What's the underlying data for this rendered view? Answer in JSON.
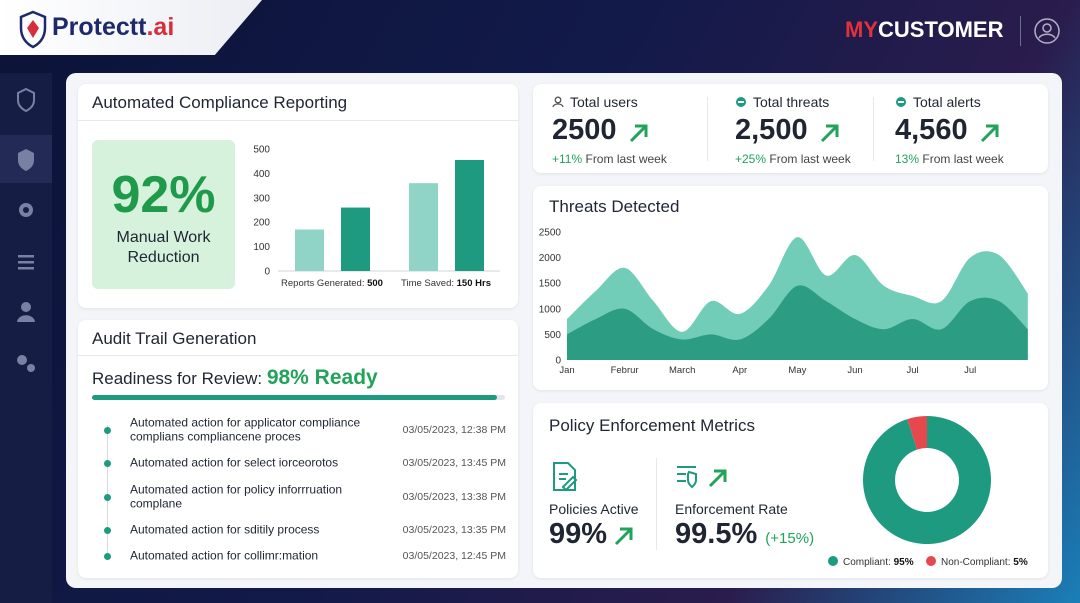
{
  "header": {
    "brand": "Protectt",
    "brand_suffix": ".ai",
    "customer_prefix": "MY",
    "customer": "CUSTOMER"
  },
  "cards": {
    "compliance": "Automated Compliance Reporting",
    "audit": "Audit Trail Generation",
    "policy": "Policy Enforcement Metrics"
  },
  "compliance": {
    "kpi": "92%",
    "kpi_label": "Manual Work Reduction"
  },
  "audit": {
    "readiness_label": "Readiness for Review:",
    "readiness_value_label": "98% Ready",
    "readiness": 98,
    "readiness_lim": [
      0,
      100
    ],
    "entries": [
      {
        "text": "Automated action for applicator compliance complians compliancene proces",
        "time": "03/05/2023, 12:38 PM"
      },
      {
        "text": "Automated action for select iorceorotos",
        "time": "03/05/2023, 13:45 PM"
      },
      {
        "text": "Automated action for policy inforrruation complane",
        "time": "03/05/2023, 13:38 PM"
      },
      {
        "text": "Automated action for sditily process",
        "time": "03/05/2023, 13:35 PM"
      },
      {
        "text": "Automated action for collimr:mation",
        "time": "03/05/2023, 12:45 PM"
      }
    ]
  },
  "stats": [
    {
      "label": "Total users",
      "value": "2500",
      "change": "+11%",
      "change_text": "From last week"
    },
    {
      "label": "Total threats",
      "value": "2,500",
      "change": "+25%",
      "change_text": "From last week"
    },
    {
      "label": "Total alerts",
      "value": "4,560",
      "change": "13%",
      "change_text": "From last week"
    }
  ],
  "policy": {
    "active_label": "Policies Active",
    "active_value": "99%",
    "rate_label": "Enforcement Rate",
    "rate_value": "99.5%",
    "rate_change": "(+15%)"
  },
  "chart_data": [
    {
      "type": "bar",
      "categories": [
        "Reports Generated:",
        "Time Saved:"
      ],
      "category_values": [
        "500",
        "150 Hrs"
      ],
      "series": [
        {
          "color": "#8fd4c7",
          "values": [
            170,
            360
          ]
        },
        {
          "color": "#1e9a80",
          "values": [
            260,
            455
          ]
        }
      ],
      "ylim": [
        0,
        500
      ],
      "yticks": [
        0,
        100,
        200,
        300,
        400,
        500
      ],
      "grid": false
    },
    {
      "type": "area",
      "title": "Threats Detected",
      "categories": [
        "Jan",
        null,
        "Februr",
        null,
        "March",
        null,
        "Apr",
        null,
        "May",
        null,
        "Jun",
        null,
        "Jul",
        null,
        "Jul",
        null,
        null
      ],
      "series": [
        {
          "color": "#72cdb8",
          "values": [
            800,
            1350,
            1800,
            1150,
            550,
            1150,
            900,
            1450,
            2400,
            1650,
            2050,
            1450,
            1250,
            1150,
            2000,
            2050,
            1300
          ]
        },
        {
          "color": "#2c9d82",
          "values": [
            500,
            800,
            1000,
            600,
            400,
            500,
            400,
            800,
            1450,
            1150,
            800,
            600,
            800,
            600,
            1150,
            1150,
            600
          ]
        }
      ],
      "ylim": [
        0,
        2500
      ],
      "yticks": [
        0,
        500,
        1000,
        1500,
        2000,
        2500
      ],
      "grid": false
    },
    {
      "type": "pie",
      "categories": [
        "Compliant:",
        "Non-Compliant:"
      ],
      "values": [
        95,
        5
      ],
      "value_labels": [
        "95%",
        "5%"
      ],
      "colors": [
        "#1e9a80",
        "#e5484d"
      ],
      "donut": true
    }
  ]
}
